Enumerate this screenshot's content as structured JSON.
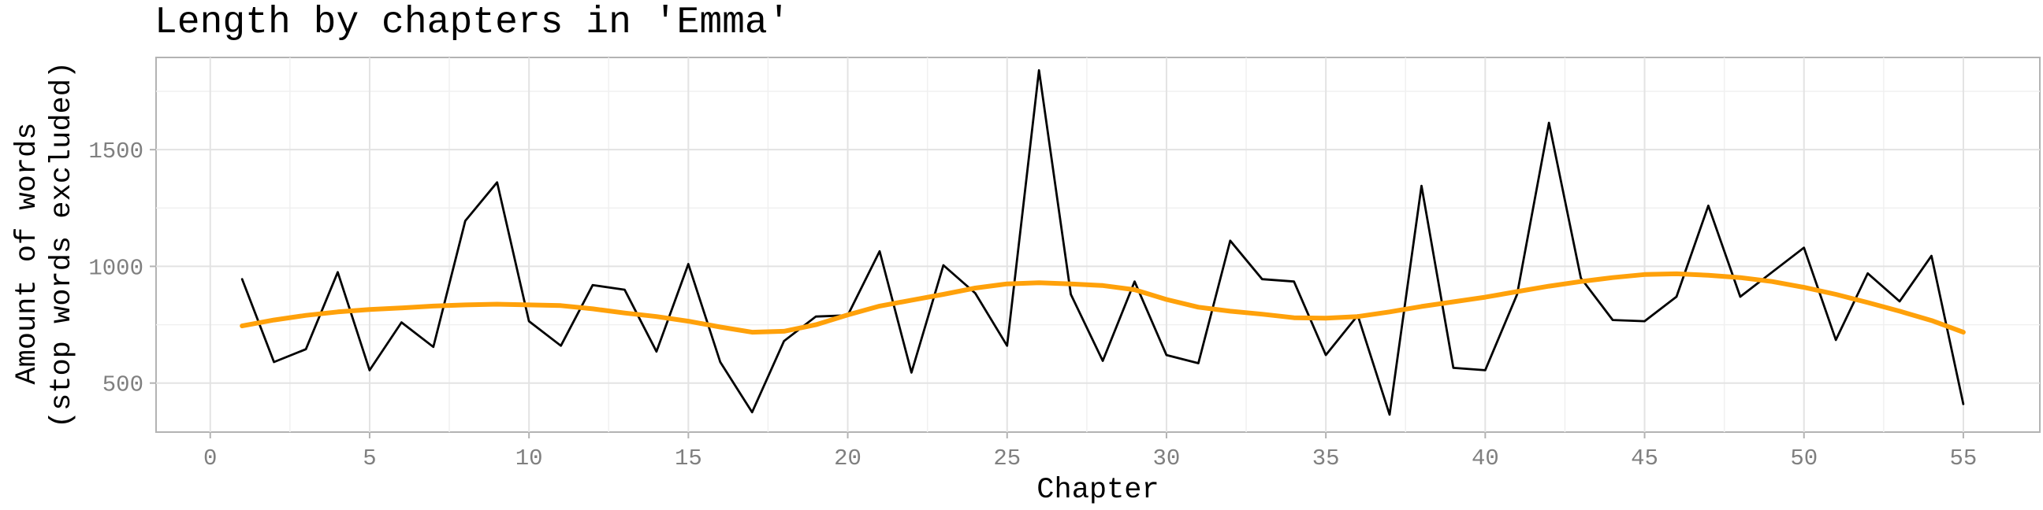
{
  "chart_data": {
    "type": "line",
    "title": "Length by chapters in 'Emma'",
    "xlabel": "Chapter",
    "ylabel": [
      "Amount of words",
      "(stop words excluded)"
    ],
    "xlim": [
      -1.7,
      57.4
    ],
    "ylim": [
      290,
      1895
    ],
    "xticks": [
      0,
      5,
      10,
      15,
      20,
      25,
      30,
      35,
      40,
      45,
      50,
      55
    ],
    "yticks": [
      500,
      1000,
      1500
    ],
    "grid": true,
    "series": [
      {
        "color": "#000000",
        "x": [
          1,
          2,
          3,
          4,
          5,
          6,
          7,
          8,
          9,
          10,
          11,
          12,
          13,
          14,
          15,
          16,
          17,
          18,
          19,
          20,
          21,
          22,
          23,
          24,
          25,
          26,
          27,
          28,
          29,
          30,
          31,
          32,
          33,
          34,
          35,
          36,
          37,
          38,
          39,
          40,
          41,
          42,
          43,
          44,
          45,
          46,
          47,
          48,
          49,
          50,
          51,
          52,
          53,
          54,
          55
        ],
        "y": [
          945,
          590,
          645,
          975,
          555,
          760,
          655,
          1195,
          1360,
          765,
          660,
          920,
          900,
          635,
          1010,
          590,
          375,
          680,
          785,
          790,
          1065,
          545,
          1005,
          885,
          660,
          1840,
          880,
          595,
          935,
          620,
          585,
          1110,
          945,
          935,
          620,
          790,
          365,
          1345,
          565,
          555,
          880,
          1615,
          950,
          770,
          765,
          870,
          1260,
          870,
          975,
          1080,
          685,
          970,
          850,
          1045,
          410
        ]
      },
      {
        "color": "#FFA10A",
        "x": [
          1,
          2,
          3,
          4,
          5,
          6,
          7,
          8,
          9,
          10,
          11,
          12,
          13,
          14,
          15,
          16,
          17,
          18,
          19,
          20,
          21,
          22,
          23,
          24,
          25,
          26,
          27,
          28,
          29,
          30,
          31,
          32,
          33,
          34,
          35,
          36,
          37,
          38,
          39,
          40,
          41,
          42,
          43,
          44,
          45,
          46,
          47,
          48,
          49,
          50,
          51,
          52,
          53,
          54,
          55
        ],
        "y": [
          745,
          770,
          790,
          805,
          815,
          822,
          830,
          835,
          838,
          835,
          832,
          818,
          800,
          785,
          765,
          740,
          718,
          722,
          750,
          792,
          830,
          855,
          880,
          907,
          925,
          930,
          925,
          918,
          900,
          858,
          825,
          808,
          795,
          780,
          778,
          785,
          805,
          828,
          848,
          868,
          892,
          915,
          935,
          952,
          965,
          968,
          962,
          952,
          935,
          910,
          880,
          845,
          808,
          768,
          718
        ]
      }
    ]
  }
}
